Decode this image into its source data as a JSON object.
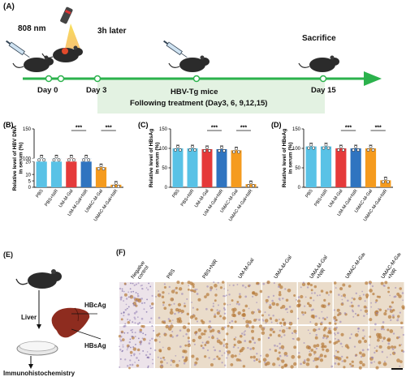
{
  "panel_a": {
    "label": "(A)",
    "laser": "808 nm",
    "later": "3h later",
    "sacrifice": "Sacrifice",
    "mice": "HBV-Tg mice",
    "treatment": "Following treatment (Day3, 6, 9,12,15)",
    "days": [
      "Day 0",
      "Day 3",
      "Day 15"
    ]
  },
  "categories": [
    "PBS",
    "PBS+NIR",
    "UM-M-Gal",
    "UM-M-Gal+NIR",
    "UMAC-M-Gal",
    "UMAC-M-Gal+NIR"
  ],
  "colors": [
    "#59c2e6",
    "#59c2e6",
    "#e53a3a",
    "#2f74c0",
    "#f59b1e",
    "#f59b1e"
  ],
  "significance": "***",
  "chart_data": [
    {
      "type": "bar",
      "label": "(B)",
      "ylabel": [
        "Relative level of HBV DNA",
        "in serum (%)"
      ],
      "yticks": [
        "0",
        "5",
        "10",
        "20",
        "100",
        "150"
      ],
      "values": [
        100,
        100,
        100,
        100,
        85,
        2
      ],
      "display": [
        100,
        100,
        100,
        100,
        85,
        2
      ]
    },
    {
      "type": "bar",
      "label": "(C)",
      "ylabel": [
        "Relative level of HBsAg",
        "in serum (%)"
      ],
      "yticks": [
        "0",
        "50",
        "100",
        "150"
      ],
      "ylim": [
        0,
        150
      ],
      "values": [
        100,
        100,
        98,
        98,
        95,
        8
      ]
    },
    {
      "type": "bar",
      "label": "(D)",
      "ylabel": [
        "Relative level of HBeAg",
        "in serum (%)"
      ],
      "yticks": [
        "0",
        "50",
        "100",
        "150"
      ],
      "ylim": [
        0,
        150
      ],
      "values": [
        105,
        105,
        100,
        100,
        100,
        18
      ]
    }
  ],
  "panel_e": {
    "label": "(E)",
    "hbcag": "HBcAg",
    "liver": "Liver",
    "hbsag": "HBsAg",
    "ihc": "Immunohistochemistry"
  },
  "panel_f": {
    "label": "(F)",
    "columns": [
      "Negative control",
      "PBS",
      "PBS+NIR",
      "UM-M-Gal",
      "UMA-M-Gal",
      "UMA-M-Gal +NIR",
      "UMAC-M-Gal",
      "UMAC-M-Gal +NIR"
    ],
    "scale": "50 μm"
  }
}
